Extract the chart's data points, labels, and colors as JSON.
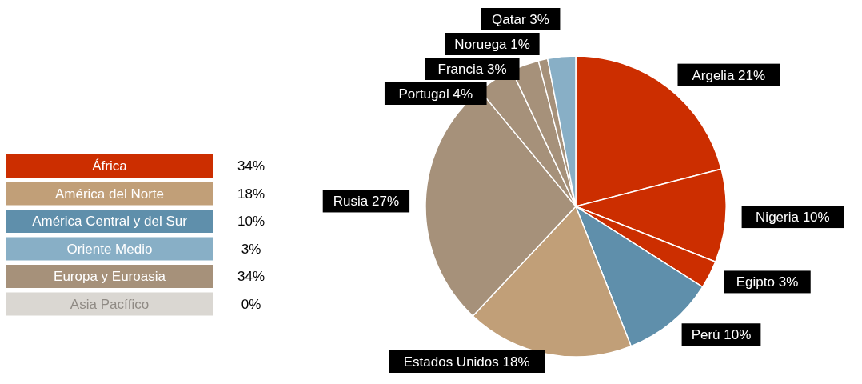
{
  "chart_data": [
    {
      "type": "other",
      "categories": [
        "África",
        "América del Norte",
        "América Central y del Sur",
        "Oriente Medio",
        "Europa y Euroasia",
        "Asia Pacífico"
      ],
      "value_labels": [
        "34%",
        "18%",
        "10%",
        "3%",
        "34%",
        "0%"
      ],
      "colors": [
        "#cc2e00",
        "#c19f78",
        "#5f8fab",
        "#88afc6",
        "#a6917a",
        "#dad7d2"
      ]
    },
    {
      "type": "pie",
      "categories": [
        "Argelia",
        "Nigeria",
        "Egipto",
        "Perú",
        "Estados Unidos",
        "Rusia",
        "Portugal",
        "Francia",
        "Noruega",
        "Qatar"
      ],
      "values": [
        21,
        10,
        3,
        10,
        18,
        27,
        4,
        3,
        1,
        3
      ],
      "value_labels": [
        "21%",
        "10%",
        "3%",
        "10%",
        "18%",
        "27%",
        "4%",
        "3%",
        "1%",
        "3%"
      ],
      "colors": [
        "#cc2e00",
        "#cc2e00",
        "#cc2e00",
        "#5f8fab",
        "#c19f78",
        "#a6917a",
        "#a6917a",
        "#a6917a",
        "#a6917a",
        "#88afc6"
      ]
    }
  ]
}
